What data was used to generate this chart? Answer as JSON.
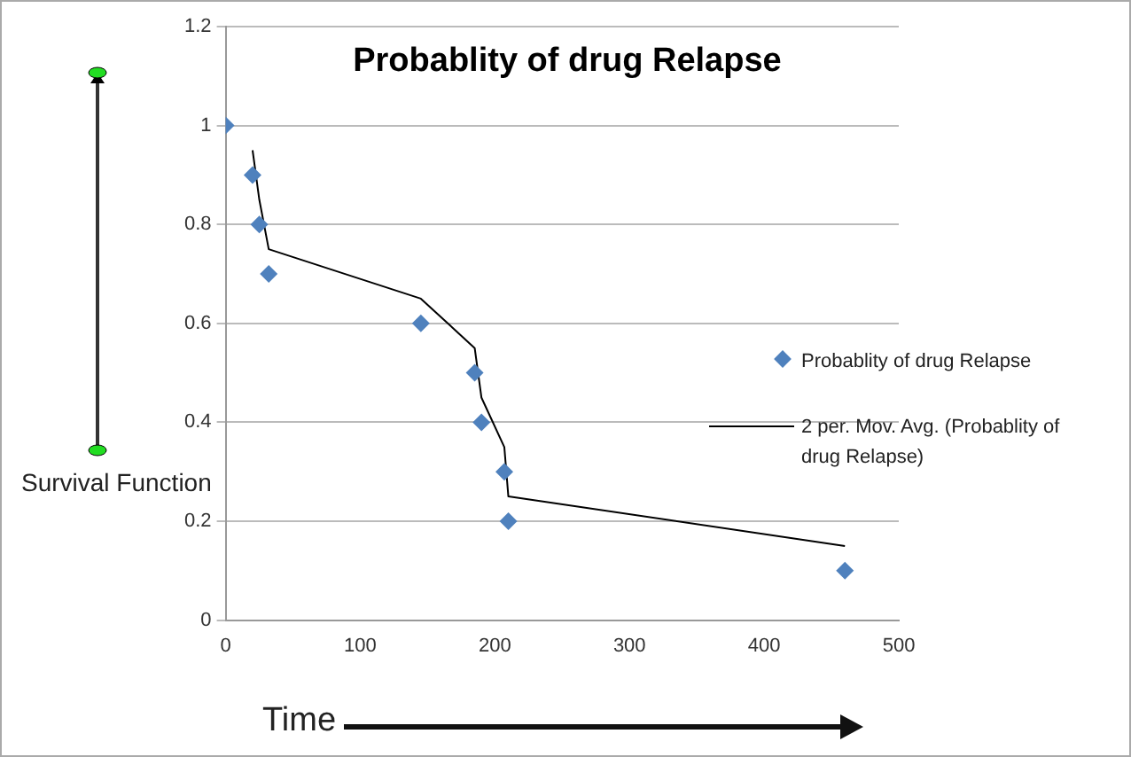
{
  "chart_data": {
    "type": "scatter",
    "title": "Probablity of drug Relapse",
    "xlabel": "Time",
    "ylabel": "Survival Function",
    "series": [
      {
        "name": "Probablity of drug Relapse",
        "color": "#4f81bd",
        "marker": "diamond",
        "x": [
          0,
          20,
          25,
          32,
          145,
          185,
          190,
          207,
          210,
          460
        ],
        "values": [
          1,
          0.9,
          0.8,
          0.7,
          0.6,
          0.5,
          0.4,
          0.3,
          0.2,
          0.1
        ]
      },
      {
        "name": "2 per. Mov. Avg. (Probablity of drug Relapse)",
        "type": "line",
        "color": "#000000",
        "marker": "none",
        "x": [
          20,
          25,
          32,
          145,
          185,
          190,
          207,
          210,
          460
        ],
        "values": [
          0.95,
          0.85,
          0.75,
          0.65,
          0.55,
          0.45,
          0.35,
          0.25,
          0.15
        ]
      }
    ],
    "xlim": [
      0,
      500
    ],
    "xticks": [
      0,
      100,
      200,
      300,
      400,
      500
    ],
    "ylim": [
      0,
      1.2
    ],
    "yticks": [
      0,
      0.2,
      0.4,
      0.6,
      0.8,
      1,
      1.2
    ],
    "grid": "y",
    "legend": "right"
  }
}
